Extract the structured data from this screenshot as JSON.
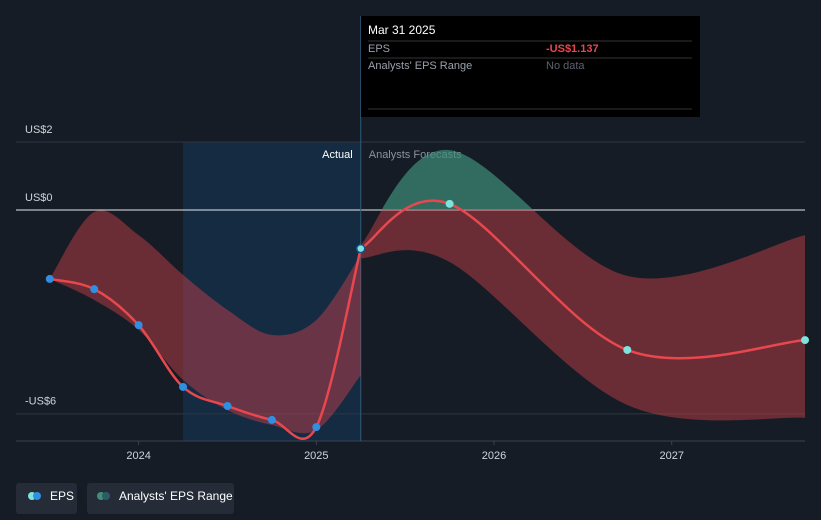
{
  "chart_data": {
    "type": "line",
    "xlim": [
      2023.31,
      2027.75
    ],
    "xticks": [
      2024,
      2025,
      2026,
      2027
    ],
    "ylim": [
      -6.8,
      2
    ],
    "yticks": [
      {
        "value": 2,
        "label": "US$2"
      },
      {
        "value": 0,
        "label": "US$0"
      },
      {
        "value": -6,
        "label": "-US$6"
      }
    ],
    "grid": true,
    "annotations": {
      "actual": "Actual",
      "forecast": "Analysts Forecasts"
    },
    "tooltip": {
      "date": "Mar 31 2025",
      "rows": [
        [
          "EPS",
          "-US$1.137"
        ],
        [
          "Analysts' EPS Range",
          "No data"
        ]
      ]
    },
    "series": [
      {
        "name": "EPS",
        "color": "#e8474e",
        "actual": {
          "point_color": "#2f8fe3",
          "x": [
            2023.5,
            2023.75,
            2024,
            2024.25,
            2024.5,
            2024.75,
            2025,
            2025.25
          ],
          "values": [
            -2.03,
            -2.33,
            -3.39,
            -5.21,
            -5.77,
            -6.18,
            -6.39,
            -1.137
          ]
        },
        "forecast": {
          "point_color": "#7de3dc",
          "x": [
            2025.75,
            2026.75,
            2027.75
          ],
          "values": [
            0.18,
            -4.12,
            -3.83
          ]
        }
      },
      {
        "name": "Analysts' EPS Range",
        "color": "#e8474e",
        "color_positive": "#3f8f7a",
        "parts": [
          {
            "x": [
              2023.5,
              2023.75,
              2024,
              2024.25,
              2024.5,
              2024.75,
              2025,
              2025.25
            ],
            "high": [
              -2.03,
              -0.06,
              -0.74,
              -1.91,
              -2.94,
              -3.68,
              -3.24,
              -1.33
            ],
            "low": [
              -2.03,
              -2.65,
              -3.53,
              -5.0,
              -5.89,
              -6.33,
              -6.48,
              -4.86
            ]
          },
          {
            "x": [
              2025.25,
              2025.75,
              2026.75,
              2027.75
            ],
            "high": [
              -1.03,
              1.76,
              -1.94,
              -0.74
            ],
            "low": [
              -1.42,
              -1.53,
              -5.74,
              -6.12
            ]
          }
        ]
      }
    ]
  }
}
